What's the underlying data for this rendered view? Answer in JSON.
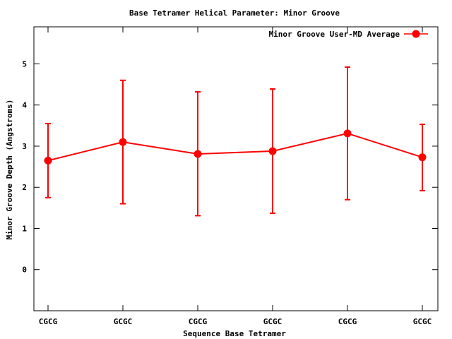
{
  "chart_data": {
    "type": "line",
    "title": "Base Tetramer Helical Parameter: Minor Groove",
    "xlabel": "Sequence Base Tetramer",
    "ylabel": "Minor Groove Depth (Angstroms)",
    "categories": [
      "CGCG",
      "GCGC",
      "CGCG",
      "GCGC",
      "CGCG",
      "GCGC"
    ],
    "ylim": [
      -1,
      5.9
    ],
    "yticks": [
      0,
      1,
      2,
      3,
      4,
      5
    ],
    "grid": false,
    "legend_position": "top-right",
    "series": [
      {
        "name": "Minor Groove User-MD Average",
        "color": "#ff0000",
        "values": [
          2.65,
          3.1,
          2.81,
          2.88,
          3.31,
          2.73
        ],
        "err_low": [
          1.75,
          1.6,
          1.31,
          1.37,
          1.7,
          1.92
        ],
        "err_high": [
          3.55,
          4.6,
          4.32,
          4.39,
          4.92,
          3.53
        ]
      }
    ]
  }
}
